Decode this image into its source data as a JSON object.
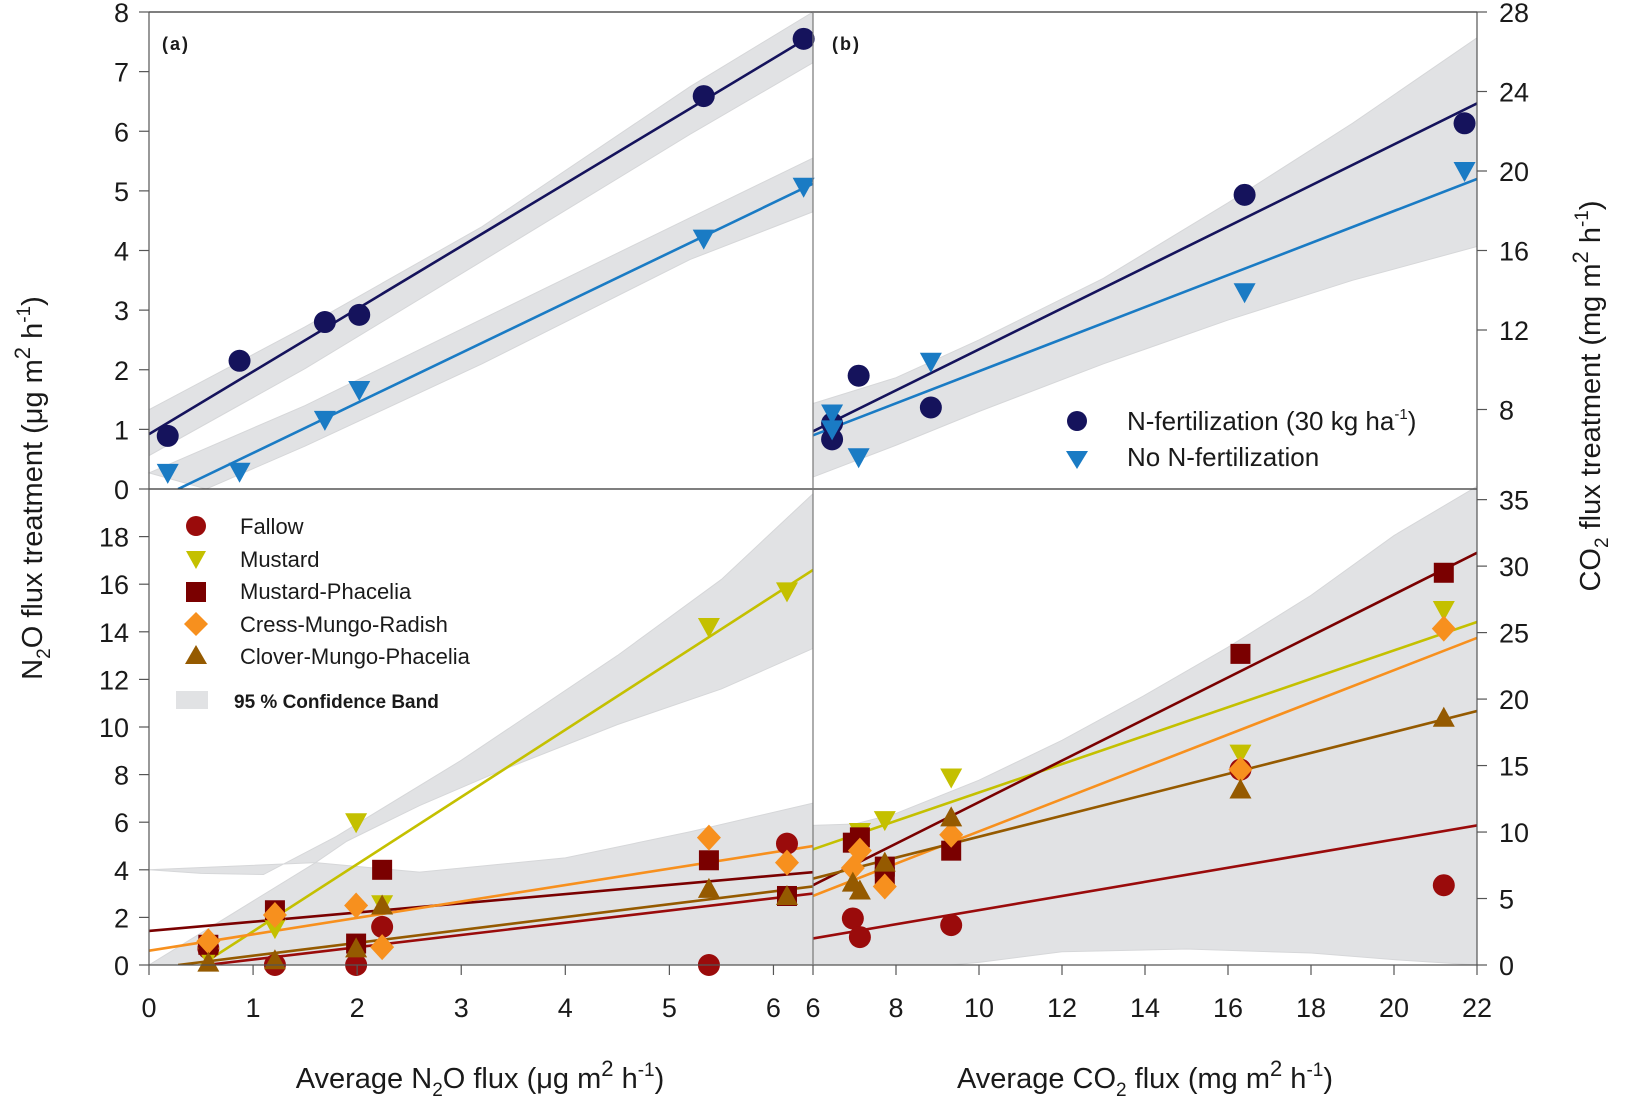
{
  "figure": {
    "left_ylabel": {
      "main": "N",
      "sub": "2",
      "rest": "O flux treatment (μg m",
      "sup1": "2",
      "mid": " h",
      "sup2": "-1",
      "end": ")"
    },
    "right_ylabel": {
      "main": "CO",
      "sub": "2",
      "rest": " flux treatment (mg m",
      "sup1": "2",
      "mid": " h",
      "sup2": "-1",
      "end": ")"
    },
    "left_xlabel": {
      "main": "Average N",
      "sub": "2",
      "rest": "O flux (μg m",
      "sup1": "2",
      "mid": " h",
      "sup2": "-1",
      "end": ")"
    },
    "right_xlabel": {
      "main": "Average CO",
      "sub": "2",
      "rest": " flux (mg m",
      "sup1": "2",
      "mid": " h",
      "sup2": "-1",
      "end": ")"
    }
  },
  "colors": {
    "n_fert": "#15135c",
    "no_fert": "#1a7bc4",
    "fallow": "#9a0b0b",
    "mustard": "#c4c000",
    "mustard_phacelia": "#7a0000",
    "cress_mungo_radish": "#f7901e",
    "clover_mungo_phacelia": "#955a00",
    "band": "#e1e2e4"
  },
  "legend_top": [
    {
      "label": "N-fertilization (30 kg ha",
      "sup": "-1",
      "end": ")",
      "marker": "circle",
      "series": "n_fert"
    },
    {
      "label": "No N-fertilization",
      "marker": "triangle-down",
      "series": "no_fert"
    }
  ],
  "legend_bottom": [
    {
      "label": "Fallow",
      "marker": "circle",
      "series": "fallow"
    },
    {
      "label": "Mustard",
      "marker": "triangle-down",
      "series": "mustard"
    },
    {
      "label": "Mustard-Phacelia",
      "marker": "square",
      "series": "mustard_phacelia"
    },
    {
      "label": "Cress-Mungo-Radish",
      "marker": "diamond",
      "series": "cress_mungo_radish"
    },
    {
      "label": "Clover-Mungo-Phacelia",
      "marker": "triangle-up",
      "series": "clover_mungo_phacelia"
    }
  ],
  "band_label": "95 % Confidence Band",
  "chart_data": [
    {
      "id": "top-left",
      "panel_label": "(a)",
      "type": "scatter",
      "xlabel": "Average N2O flux (μg m2 h-1)",
      "ylabel": "N2O flux treatment (μg m2 h-1)",
      "xlim": [
        0,
        6.38
      ],
      "ylim": [
        0,
        8
      ],
      "yticks": [
        0,
        1,
        2,
        3,
        4,
        5,
        6,
        7,
        8
      ],
      "xticks": [],
      "series": [
        {
          "name": "N-fertilization (30 kg ha-1)",
          "key": "n_fert",
          "marker": "circle",
          "x": [
            0.18,
            0.87,
            1.69,
            2.02,
            5.33,
            6.29
          ],
          "y": [
            0.89,
            2.15,
            2.8,
            2.92,
            6.59,
            7.55
          ],
          "fit": [
            [
              0,
              0.92
            ],
            [
              6.38,
              7.62
            ]
          ],
          "band_upper": [
            [
              0,
              1.33
            ],
            [
              1.5,
              2.72
            ],
            [
              3.2,
              4.4
            ],
            [
              5.2,
              6.75
            ],
            [
              6.38,
              8.0
            ]
          ],
          "band_lower": [
            [
              0,
              0.56
            ],
            [
              1.5,
              2.02
            ],
            [
              3.2,
              3.82
            ],
            [
              5.2,
              5.95
            ],
            [
              6.38,
              7.15
            ]
          ]
        },
        {
          "name": "No N-fertilization",
          "key": "no_fert",
          "marker": "triangle-down",
          "x": [
            0.18,
            0.87,
            1.69,
            2.02,
            5.33,
            6.29
          ],
          "y": [
            0.27,
            0.29,
            1.16,
            1.66,
            4.2,
            5.07
          ],
          "fit": [
            [
              0.28,
              0
            ],
            [
              6.38,
              5.12
            ]
          ],
          "band_upper": [
            [
              0,
              0.27
            ],
            [
              1.5,
              1.4
            ],
            [
              3.2,
              2.85
            ],
            [
              5.2,
              4.55
            ],
            [
              6.38,
              5.55
            ]
          ],
          "band_lower": [
            [
              0.55,
              0
            ],
            [
              1.5,
              0.72
            ],
            [
              3.2,
              2.1
            ],
            [
              5.2,
              3.85
            ],
            [
              6.38,
              4.65
            ]
          ]
        }
      ]
    },
    {
      "id": "top-right",
      "panel_label": "(b)",
      "type": "scatter",
      "xlabel": "Average CO2 flux (mg m2 h-1)",
      "ylabel": "CO2 flux treatment (mg m2 h-1)",
      "xlim": [
        6,
        22
      ],
      "ylim": [
        4,
        28
      ],
      "yticks": [
        8,
        12,
        16,
        20,
        24,
        28
      ],
      "legend": "bottom-right",
      "series": [
        {
          "name": "N-fertilization (30 kg ha-1)",
          "key": "n_fert",
          "marker": "circle",
          "x": [
            6.46,
            6.46,
            7.1,
            8.84,
            16.4,
            21.7
          ],
          "y": [
            6.5,
            7.3,
            9.7,
            8.1,
            18.8,
            22.4
          ],
          "fit": [
            [
              6,
              6.9
            ],
            [
              22,
              23.4
            ]
          ]
        },
        {
          "name": "No N-fertilization",
          "key": "no_fert",
          "marker": "triangle-down",
          "x": [
            6.46,
            6.46,
            7.1,
            8.84,
            16.4,
            21.7
          ],
          "y": [
            7.8,
            7.0,
            5.6,
            10.4,
            13.9,
            20.0
          ],
          "fit": [
            [
              6,
              6.7
            ],
            [
              22,
              19.6
            ]
          ]
        }
      ],
      "band_upper": [
        [
          6,
          8.3
        ],
        [
          8,
          9.6
        ],
        [
          10,
          11.5
        ],
        [
          13,
          14.6
        ],
        [
          16,
          18.4
        ],
        [
          19,
          22.4
        ],
        [
          22,
          26.7
        ]
      ],
      "band_lower": [
        [
          6,
          4.6
        ],
        [
          8,
          6.2
        ],
        [
          10,
          7.9
        ],
        [
          13,
          10.3
        ],
        [
          16,
          12.5
        ],
        [
          19,
          14.5
        ],
        [
          22,
          16.2
        ]
      ]
    },
    {
      "id": "bottom-left",
      "type": "scatter",
      "xlabel": "Average N2O flux (μg m2 h-1)",
      "ylabel": "N2O flux treatment (μg m2 h-1)",
      "xlim": [
        0,
        6.38
      ],
      "ylim": [
        0,
        20
      ],
      "xticks": [
        0,
        1,
        2,
        3,
        4,
        5,
        6
      ],
      "yticks": [
        0,
        2,
        4,
        6,
        8,
        10,
        12,
        14,
        16,
        18
      ],
      "legend": "top-left",
      "series": [
        {
          "name": "Fallow",
          "key": "fallow",
          "marker": "circle",
          "x": [
            0.57,
            1.21,
            1.99,
            2.24,
            5.38,
            6.13
          ],
          "y": [
            0.7,
            0,
            0,
            1.6,
            0,
            5.1
          ],
          "fit": [
            [
              0.55,
              0
            ],
            [
              6.38,
              3.0
            ]
          ]
        },
        {
          "name": "Mustard",
          "key": "mustard",
          "marker": "triangle-down",
          "x": [
            0.57,
            1.21,
            1.99,
            2.24,
            5.38,
            6.13
          ],
          "y": [
            0.35,
            1.55,
            6.0,
            2.55,
            14.2,
            15.7
          ],
          "fit": [
            [
              0.5,
              0
            ],
            [
              6.38,
              16.6
            ]
          ]
        },
        {
          "name": "Mustard-Phacelia",
          "key": "mustard_phacelia",
          "marker": "square",
          "x": [
            0.57,
            1.21,
            1.99,
            2.24,
            5.38,
            6.13
          ],
          "y": [
            0.85,
            2.3,
            0.9,
            4.0,
            4.4,
            2.9
          ],
          "fit": [
            [
              0,
              1.43
            ],
            [
              6.38,
              3.9
            ]
          ]
        },
        {
          "name": "Cress-Mungo-Radish",
          "key": "cress_mungo_radish",
          "marker": "diamond",
          "x": [
            0.57,
            1.21,
            1.99,
            2.24,
            5.38,
            6.13
          ],
          "y": [
            1.0,
            2.1,
            2.5,
            0.75,
            5.35,
            4.3
          ],
          "fit": [
            [
              0,
              0.6
            ],
            [
              6.38,
              5.0
            ]
          ]
        },
        {
          "name": "Clover-Mungo-Phacelia",
          "key": "clover_mungo_phacelia",
          "marker": "triangle-up",
          "x": [
            0.57,
            1.21,
            1.99,
            2.24,
            5.38,
            6.13
          ],
          "y": [
            0.1,
            0.2,
            0.7,
            2.5,
            3.2,
            2.9
          ],
          "fit": [
            [
              0.28,
              0
            ],
            [
              6.38,
              3.3
            ]
          ]
        }
      ],
      "bands": [
        {
          "upper": [
            [
              0,
              4.0
            ],
            [
              0.5,
              3.85
            ],
            [
              1.1,
              3.8
            ],
            [
              1.8,
              5.4
            ],
            [
              3.0,
              8.6
            ],
            [
              4.5,
              13.0
            ],
            [
              5.5,
              16.2
            ],
            [
              6.38,
              19.8
            ]
          ],
          "lower": [
            [
              6.38,
              13.3
            ],
            [
              5.5,
              11.6
            ],
            [
              4.5,
              10.1
            ],
            [
              3.4,
              8.2
            ],
            [
              2.6,
              6.7
            ],
            [
              1.9,
              5.2
            ],
            [
              1.6,
              4.3
            ]
          ]
        },
        {
          "upper": [
            [
              1.6,
              4.3
            ],
            [
              2.6,
              3.9
            ],
            [
              4.0,
              4.5
            ],
            [
              5.2,
              5.6
            ],
            [
              6.38,
              6.8
            ]
          ],
          "lower": [
            [
              6.38,
              0
            ],
            [
              0,
              0
            ]
          ]
        }
      ]
    },
    {
      "id": "bottom-right",
      "type": "scatter",
      "xlabel": "Average CO2 flux (mg m2 h-1)",
      "ylabel": "CO2 flux treatment (mg m2 h-1)",
      "xlim": [
        6,
        22
      ],
      "ylim": [
        0,
        35.8
      ],
      "xticks": [
        6,
        8,
        10,
        12,
        14,
        16,
        18,
        20,
        22
      ],
      "yticks": [
        0,
        5,
        10,
        15,
        20,
        25,
        30,
        35
      ],
      "series": [
        {
          "name": "Fallow",
          "key": "fallow",
          "marker": "circle",
          "x": [
            6.96,
            7.13,
            9.33,
            16.3,
            21.2
          ],
          "y": [
            3.5,
            2.1,
            3.0,
            14.7,
            6.0
          ],
          "fit": [
            [
              6,
              2.0
            ],
            [
              22,
              10.5
            ]
          ]
        },
        {
          "name": "Mustard",
          "key": "mustard",
          "marker": "triangle-down",
          "x": [
            7.13,
            7.73,
            9.33,
            16.3,
            21.2
          ],
          "y": [
            10.0,
            10.9,
            14.1,
            15.9,
            26.7
          ],
          "fit": [
            [
              6,
              8.7
            ],
            [
              22,
              25.8
            ]
          ]
        },
        {
          "name": "Mustard-Phacelia",
          "key": "mustard_phacelia",
          "marker": "square",
          "x": [
            6.96,
            7.13,
            7.73,
            7.73,
            9.33,
            16.3,
            21.2
          ],
          "y": [
            9.2,
            9.6,
            6.6,
            7.4,
            8.6,
            23.4,
            29.5
          ],
          "fit": [
            [
              6,
              6.0
            ],
            [
              22,
              31.0
            ]
          ]
        },
        {
          "name": "Cress-Mungo-Radish",
          "key": "cress_mungo_radish",
          "marker": "diamond",
          "x": [
            6.96,
            7.13,
            7.73,
            9.33,
            16.3,
            21.2
          ],
          "y": [
            7.3,
            8.6,
            5.9,
            9.8,
            14.7,
            25.3
          ],
          "fit": [
            [
              6,
              5.2
            ],
            [
              22,
              24.6
            ]
          ]
        },
        {
          "name": "Clover-Mungo-Phacelia",
          "key": "clover_mungo_phacelia",
          "marker": "triangle-up",
          "x": [
            6.96,
            7.13,
            7.73,
            9.33,
            16.3,
            21.2
          ],
          "y": [
            6.2,
            5.6,
            7.7,
            11.1,
            13.2,
            18.6
          ],
          "fit": [
            [
              6,
              6.5
            ],
            [
              22,
              19.1
            ]
          ]
        }
      ],
      "bands": [
        {
          "upper": [
            [
              6,
              10.5
            ],
            [
              7,
              10.6
            ],
            [
              8,
              11.4
            ],
            [
              10,
              13.9
            ],
            [
              12,
              16.9
            ],
            [
              14,
              20.3
            ],
            [
              16,
              23.9
            ],
            [
              18,
              27.8
            ],
            [
              20,
              32.3
            ],
            [
              22,
              36.0
            ]
          ],
          "lower": [
            [
              22,
              0
            ],
            [
              20,
              0.4
            ],
            [
              18,
              0.9
            ],
            [
              15,
              1.2
            ],
            [
              12,
              1.0
            ],
            [
              10,
              0.2
            ],
            [
              9.3,
              0
            ],
            [
              6,
              0
            ]
          ]
        }
      ]
    }
  ]
}
